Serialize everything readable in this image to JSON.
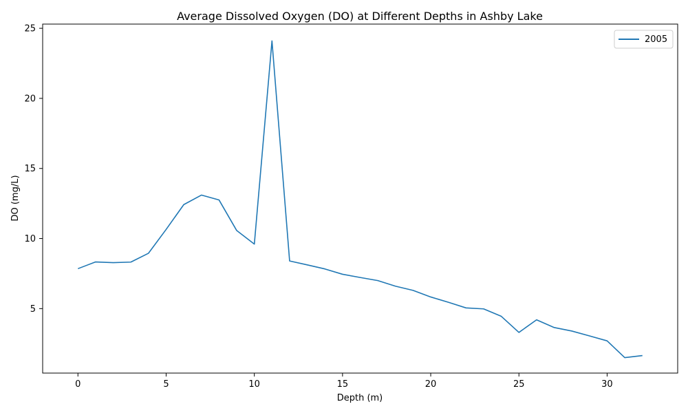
{
  "chart_data": {
    "type": "line",
    "title": "Average Dissolved Oxygen (DO) at Different Depths in Ashby Lake",
    "xlabel": "Depth (m)",
    "ylabel": "DO (mg/L)",
    "xlim": [
      -2,
      34
    ],
    "ylim": [
      0.4,
      25.3
    ],
    "xticks": [
      0,
      5,
      10,
      15,
      20,
      25,
      30
    ],
    "yticks": [
      5,
      10,
      15,
      20,
      25
    ],
    "grid": false,
    "legend_position": "top-right",
    "series": [
      {
        "name": "2005",
        "color": "#1f77b4",
        "x": [
          0,
          1,
          2,
          3,
          4,
          5,
          6,
          7,
          8,
          9,
          10,
          11,
          12,
          13,
          14,
          15,
          16,
          17,
          18,
          19,
          20,
          21,
          22,
          23,
          24,
          25,
          26,
          27,
          28,
          29,
          30,
          31,
          32
        ],
        "y": [
          7.85,
          8.33,
          8.28,
          8.32,
          8.95,
          10.65,
          12.42,
          13.1,
          12.75,
          10.57,
          9.6,
          24.1,
          8.4,
          8.12,
          7.83,
          7.45,
          7.22,
          7.0,
          6.6,
          6.3,
          5.83,
          5.45,
          5.05,
          4.98,
          4.45,
          3.3,
          4.2,
          3.65,
          3.4,
          3.05,
          2.7,
          1.5,
          1.65
        ]
      }
    ]
  }
}
